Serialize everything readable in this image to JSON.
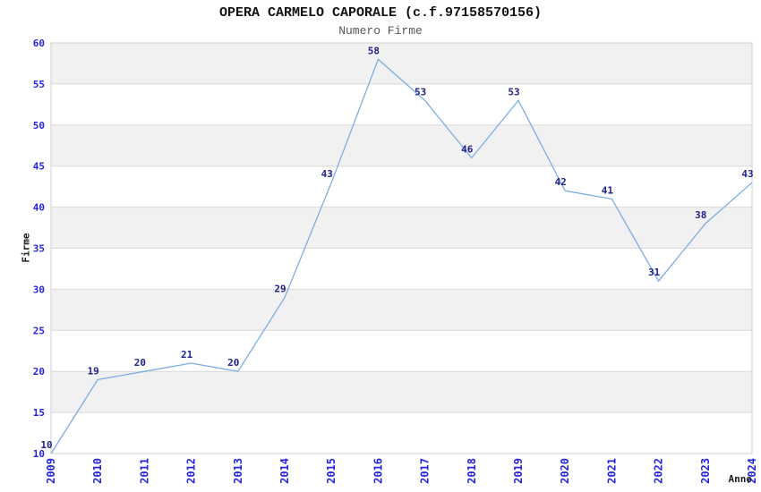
{
  "chart_data": {
    "type": "line",
    "title": "OPERA CARMELO CAPORALE (c.f.97158570156)",
    "subtitle": "Numero Firme",
    "xlabel": "Anno",
    "ylabel": "Firme",
    "x": [
      2009,
      2010,
      2011,
      2012,
      2013,
      2014,
      2015,
      2016,
      2017,
      2018,
      2019,
      2020,
      2021,
      2022,
      2023,
      2024
    ],
    "values": [
      10,
      19,
      20,
      21,
      20,
      29,
      43,
      58,
      53,
      46,
      53,
      42,
      41,
      31,
      38,
      43
    ],
    "ylim": [
      10,
      60
    ],
    "ytick_step": 5,
    "legend": "none",
    "grid": "horizontal-bands",
    "colors": {
      "line": "#7aaee3",
      "band": "#f1f1f1",
      "gridline": "#d9d9d9",
      "border": "#cfcfcf",
      "tick_label": "#2424dd",
      "point_label": "#20208c",
      "title": "#111111",
      "subtitle": "#565656"
    }
  }
}
